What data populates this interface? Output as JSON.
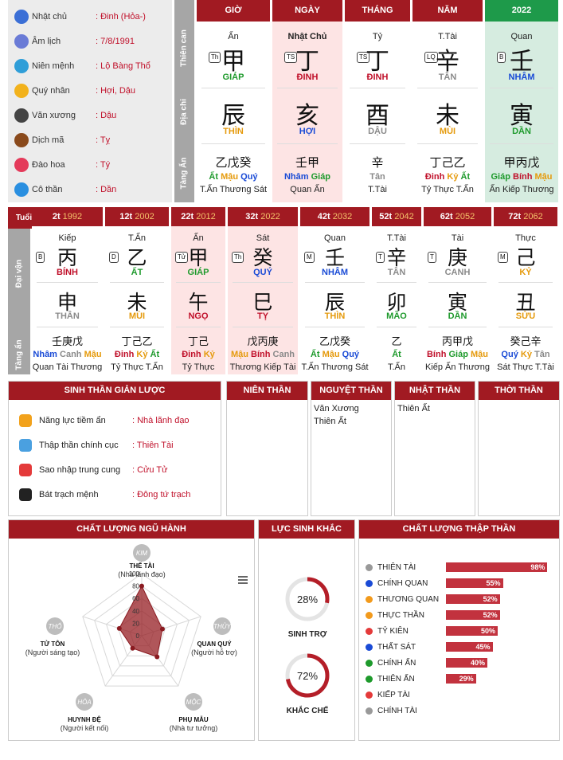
{
  "info": [
    {
      "icon": "user-icon",
      "color": "#3b6fd6",
      "label": "Nhật chủ",
      "value": ": Đinh (Hỏa-)"
    },
    {
      "icon": "calendar-icon",
      "color": "#6a7bd6",
      "label": "Âm lịch",
      "value": ": 7/8/1991"
    },
    {
      "icon": "cycle-icon",
      "color": "#2f9ed8",
      "label": "Niên mệnh",
      "value": ": Lộ Bàng Thổ"
    },
    {
      "icon": "star-icon",
      "color": "#f2b21c",
      "label": "Quý nhân",
      "value": ": Hợi, Dậu"
    },
    {
      "icon": "graduation-cap-icon",
      "color": "#444",
      "label": "Văn xương",
      "value": ": Dậu"
    },
    {
      "icon": "horse-icon",
      "color": "#8a4a1c",
      "label": "Dịch mã",
      "value": ": Tỵ"
    },
    {
      "icon": "heart-icon",
      "color": "#e43a5a",
      "label": "Đào hoa",
      "value": ": Tý"
    },
    {
      "icon": "person-icon",
      "color": "#2a8fe0",
      "label": "Cô thần",
      "value": ": Dần"
    }
  ],
  "sides": {
    "thien_can": "Thiên can",
    "dia_chi": "Địa chi",
    "tang_an": "Tàng Ẩn",
    "tuoi": "Tuổi",
    "dai_van": "Đại vận",
    "tang_an2": "Tàng ẩn"
  },
  "pillars": [
    {
      "head": "GIỜ",
      "top": "Ẩn",
      "tag": "Th",
      "stem": "甲",
      "stem_name": "GIÁP",
      "stem_color": "grn",
      "branch": "辰",
      "branch_name": "THÌN",
      "branch_color": "org",
      "hidden": "乙戊癸",
      "hidden_names": [
        [
          "Ất",
          "grn"
        ],
        [
          "Mậu",
          "org"
        ],
        [
          "Quý",
          "blu"
        ]
      ],
      "hidden_gods": "T.Ấn Thương Sát",
      "bg": "#fff",
      "head_bg": "#a11a22"
    },
    {
      "head": "NGÀY",
      "top": "Nhật Chủ",
      "tag": "TS",
      "stem": "丁",
      "stem_name": "ĐINH",
      "stem_color": "red",
      "branch": "亥",
      "branch_name": "HỢI",
      "branch_color": "blu",
      "hidden": "壬甲",
      "hidden_names": [
        [
          "Nhâm",
          "blu"
        ],
        [
          "Giáp",
          "grn"
        ]
      ],
      "hidden_gods": "Quan Ấn",
      "bg": "#fde4e4",
      "head_bg": "#a11a22"
    },
    {
      "head": "THÁNG",
      "top": "Tỷ",
      "tag": "TS",
      "stem": "丁",
      "stem_name": "ĐINH",
      "stem_color": "red",
      "branch": "酉",
      "branch_name": "DẬU",
      "branch_color": "gry",
      "hidden": "辛",
      "hidden_names": [
        [
          "Tân",
          "gry"
        ]
      ],
      "hidden_gods": "T.Tài",
      "bg": "#fff",
      "head_bg": "#a11a22"
    },
    {
      "head": "NĂM",
      "top": "T.Tài",
      "tag": "LQ",
      "stem": "辛",
      "stem_name": "TÂN",
      "stem_color": "gry",
      "branch": "未",
      "branch_name": "MÙI",
      "branch_color": "org",
      "hidden": "丁己乙",
      "hidden_names": [
        [
          "Đinh",
          "red"
        ],
        [
          "Kỷ",
          "org"
        ],
        [
          "Ất",
          "grn"
        ]
      ],
      "hidden_gods": "Tỷ Thực T.Ấn",
      "bg": "#fff",
      "head_bg": "#a11a22"
    },
    {
      "head": "2022",
      "top": "Quan",
      "tag": "B",
      "stem": "壬",
      "stem_name": "NHÂM",
      "stem_color": "blu",
      "branch": "寅",
      "branch_name": "DẦN",
      "branch_color": "grn",
      "hidden": "甲丙戊",
      "hidden_names": [
        [
          "Giáp",
          "grn"
        ],
        [
          "Bính",
          "red"
        ],
        [
          "Mậu",
          "org"
        ]
      ],
      "hidden_gods": "Ấn Kiếp Thương",
      "bg": "#d6ece0",
      "head_bg": "#1e9a4a"
    }
  ],
  "dai_van": [
    {
      "age": "2t",
      "year": "1992",
      "top": "Kiếp",
      "tag": "B",
      "stem": "丙",
      "stem_name": "BÍNH",
      "stem_color": "red",
      "branch": "申",
      "branch_name": "THÂN",
      "branch_color": "gry",
      "hidden": "壬庚戊",
      "hidden_names": [
        [
          "Nhâm",
          "blu"
        ],
        [
          "Canh",
          "gry"
        ],
        [
          "Mậu",
          "org"
        ]
      ],
      "hidden_gods": "Quan Tài Thương",
      "hl": false
    },
    {
      "age": "12t",
      "year": "2002",
      "top": "T.Ấn",
      "tag": "D",
      "stem": "乙",
      "stem_name": "ẤT",
      "stem_color": "grn",
      "branch": "未",
      "branch_name": "MÙI",
      "branch_color": "org",
      "hidden": "丁己乙",
      "hidden_names": [
        [
          "Đinh",
          "red"
        ],
        [
          "Kỷ",
          "org"
        ],
        [
          "Ất",
          "grn"
        ]
      ],
      "hidden_gods": "Tỷ Thực T.Ấn",
      "hl": false
    },
    {
      "age": "22t",
      "year": "2012",
      "top": "Ấn",
      "tag": "Tử",
      "stem": "甲",
      "stem_name": "GIÁP",
      "stem_color": "grn",
      "branch": "午",
      "branch_name": "NGỌ",
      "branch_color": "red",
      "hidden": "丁己",
      "hidden_names": [
        [
          "Đinh",
          "red"
        ],
        [
          "Kỷ",
          "org"
        ]
      ],
      "hidden_gods": "Tỷ Thực",
      "hl": true
    },
    {
      "age": "32t",
      "year": "2022",
      "top": "Sát",
      "tag": "Th",
      "stem": "癸",
      "stem_name": "QUÝ",
      "stem_color": "blu",
      "branch": "巳",
      "branch_name": "TỴ",
      "branch_color": "red",
      "hidden": "戊丙庚",
      "hidden_names": [
        [
          "Mậu",
          "org"
        ],
        [
          "Bính",
          "red"
        ],
        [
          "Canh",
          "gry"
        ]
      ],
      "hidden_gods": "Thương Kiếp Tài",
      "hl": true
    },
    {
      "age": "42t",
      "year": "2032",
      "top": "Quan",
      "tag": "M",
      "stem": "壬",
      "stem_name": "NHÂM",
      "stem_color": "blu",
      "branch": "辰",
      "branch_name": "THÌN",
      "branch_color": "org",
      "hidden": "乙戊癸",
      "hidden_names": [
        [
          "Ất",
          "grn"
        ],
        [
          "Mậu",
          "org"
        ],
        [
          "Quý",
          "blu"
        ]
      ],
      "hidden_gods": "T.Ấn Thương Sát",
      "hl": false
    },
    {
      "age": "52t",
      "year": "2042",
      "top": "T.Tài",
      "tag": "T",
      "stem": "辛",
      "stem_name": "TÂN",
      "stem_color": "gry",
      "branch": "卯",
      "branch_name": "MÃO",
      "branch_color": "grn",
      "hidden": "乙",
      "hidden_names": [
        [
          "Ất",
          "grn"
        ]
      ],
      "hidden_gods": "T.Ấn",
      "hl": false
    },
    {
      "age": "62t",
      "year": "2052",
      "top": "Tài",
      "tag": "T",
      "stem": "庚",
      "stem_name": "CANH",
      "stem_color": "gry",
      "branch": "寅",
      "branch_name": "DẦN",
      "branch_color": "grn",
      "hidden": "丙甲戊",
      "hidden_names": [
        [
          "Bính",
          "red"
        ],
        [
          "Giáp",
          "grn"
        ],
        [
          "Mậu",
          "org"
        ]
      ],
      "hidden_gods": "Kiếp Ấn Thương",
      "hl": false
    },
    {
      "age": "72t",
      "year": "2062",
      "top": "Thực",
      "tag": "M",
      "stem": "己",
      "stem_name": "KỶ",
      "stem_color": "org",
      "branch": "丑",
      "branch_name": "SỬU",
      "branch_color": "org",
      "hidden": "癸己辛",
      "hidden_names": [
        [
          "Quý",
          "blu"
        ],
        [
          "Kỷ",
          "org"
        ],
        [
          "Tân",
          "gry"
        ]
      ],
      "hidden_gods": "Sát Thực T.Tài",
      "hl": false
    }
  ],
  "sinh_than": {
    "title": "SINH THẦN GIẢN LƯỢC",
    "rows": [
      {
        "icon": "medal-icon",
        "color": "#f2a21c",
        "label": "Năng lực tiềm ẩn",
        "value": ": Nhà lãnh đạo"
      },
      {
        "icon": "bar-chart-icon",
        "color": "#4aa0e0",
        "label": "Thập thần chính cục",
        "value": ": Thiên Tài"
      },
      {
        "icon": "star-box-icon",
        "color": "#e43a3a",
        "label": "Sao nhập trung cung",
        "value": ": Cửu Tử"
      },
      {
        "icon": "yin-yang-icon",
        "color": "#222",
        "label": "Bát trạch mệnh",
        "value": ": Đông tứ trạch"
      }
    ]
  },
  "than_cols": [
    {
      "title": "NIÊN THẦN",
      "items": []
    },
    {
      "title": "NGUYỆT THẦN",
      "items": [
        "Văn Xương",
        "Thiên Ất"
      ]
    },
    {
      "title": "NHẬT THẦN",
      "items": [
        "Thiên Ất"
      ]
    },
    {
      "title": "THỜI THẦN",
      "items": []
    }
  ],
  "ngu_hanh": {
    "title": "CHẤT LƯỢNG NGŨ HÀNH",
    "nodes": [
      {
        "el": "KIM",
        "name": "THẾ TÀI",
        "desc": "(Nhà lãnh đạo)",
        "value": 80
      },
      {
        "el": "THỦY",
        "name": "QUAN QUÝ",
        "desc": "(Người hỗ trợ)",
        "value": 35
      },
      {
        "el": "MỘC",
        "name": "PHỤ MẪU",
        "desc": "(Nhà tư tưởng)",
        "value": 42
      },
      {
        "el": "HỎA",
        "name": "HUYNH ĐỆ",
        "desc": "(Người kết nối)",
        "value": 25
      },
      {
        "el": "THỔ",
        "name": "TỬ TÔN",
        "desc": "(Người sáng tạo)",
        "value": 38
      }
    ],
    "ticks": [
      "100",
      "80",
      "60",
      "40",
      "20",
      "0"
    ]
  },
  "luc": {
    "title": "LỰC SINH KHẮC",
    "items": [
      {
        "pct": "28%",
        "label": "SINH TRỢ",
        "value": 28
      },
      {
        "pct": "72%",
        "label": "KHẮC CHẾ",
        "value": 72
      }
    ]
  },
  "thap_than": {
    "title": "CHẤT LƯỢNG THẬP THẦN",
    "rows": [
      {
        "name": "THIÊN TÀI",
        "color": "#999",
        "value": 98,
        "label": "98%"
      },
      {
        "name": "CHÍNH QUAN",
        "color": "#1a4bd6",
        "value": 55,
        "label": "55%"
      },
      {
        "name": "THƯƠNG QUAN",
        "color": "#f29a1c",
        "value": 52,
        "label": "52%"
      },
      {
        "name": "THỰC THẦN",
        "color": "#f29a1c",
        "value": 52,
        "label": "52%"
      },
      {
        "name": "TỶ KIÊN",
        "color": "#e43a3a",
        "value": 50,
        "label": "50%"
      },
      {
        "name": "THẤT SÁT",
        "color": "#1a4bd6",
        "value": 45,
        "label": "45%"
      },
      {
        "name": "CHÍNH ẤN",
        "color": "#1e9a2c",
        "value": 40,
        "label": "40%"
      },
      {
        "name": "THIÊN ẤN",
        "color": "#1e9a2c",
        "value": 29,
        "label": "29%"
      },
      {
        "name": "KIẾP TÀI",
        "color": "#e43a3a",
        "value": 0,
        "label": ""
      },
      {
        "name": "CHÍNH TÀI",
        "color": "#999",
        "value": 0,
        "label": ""
      }
    ]
  }
}
